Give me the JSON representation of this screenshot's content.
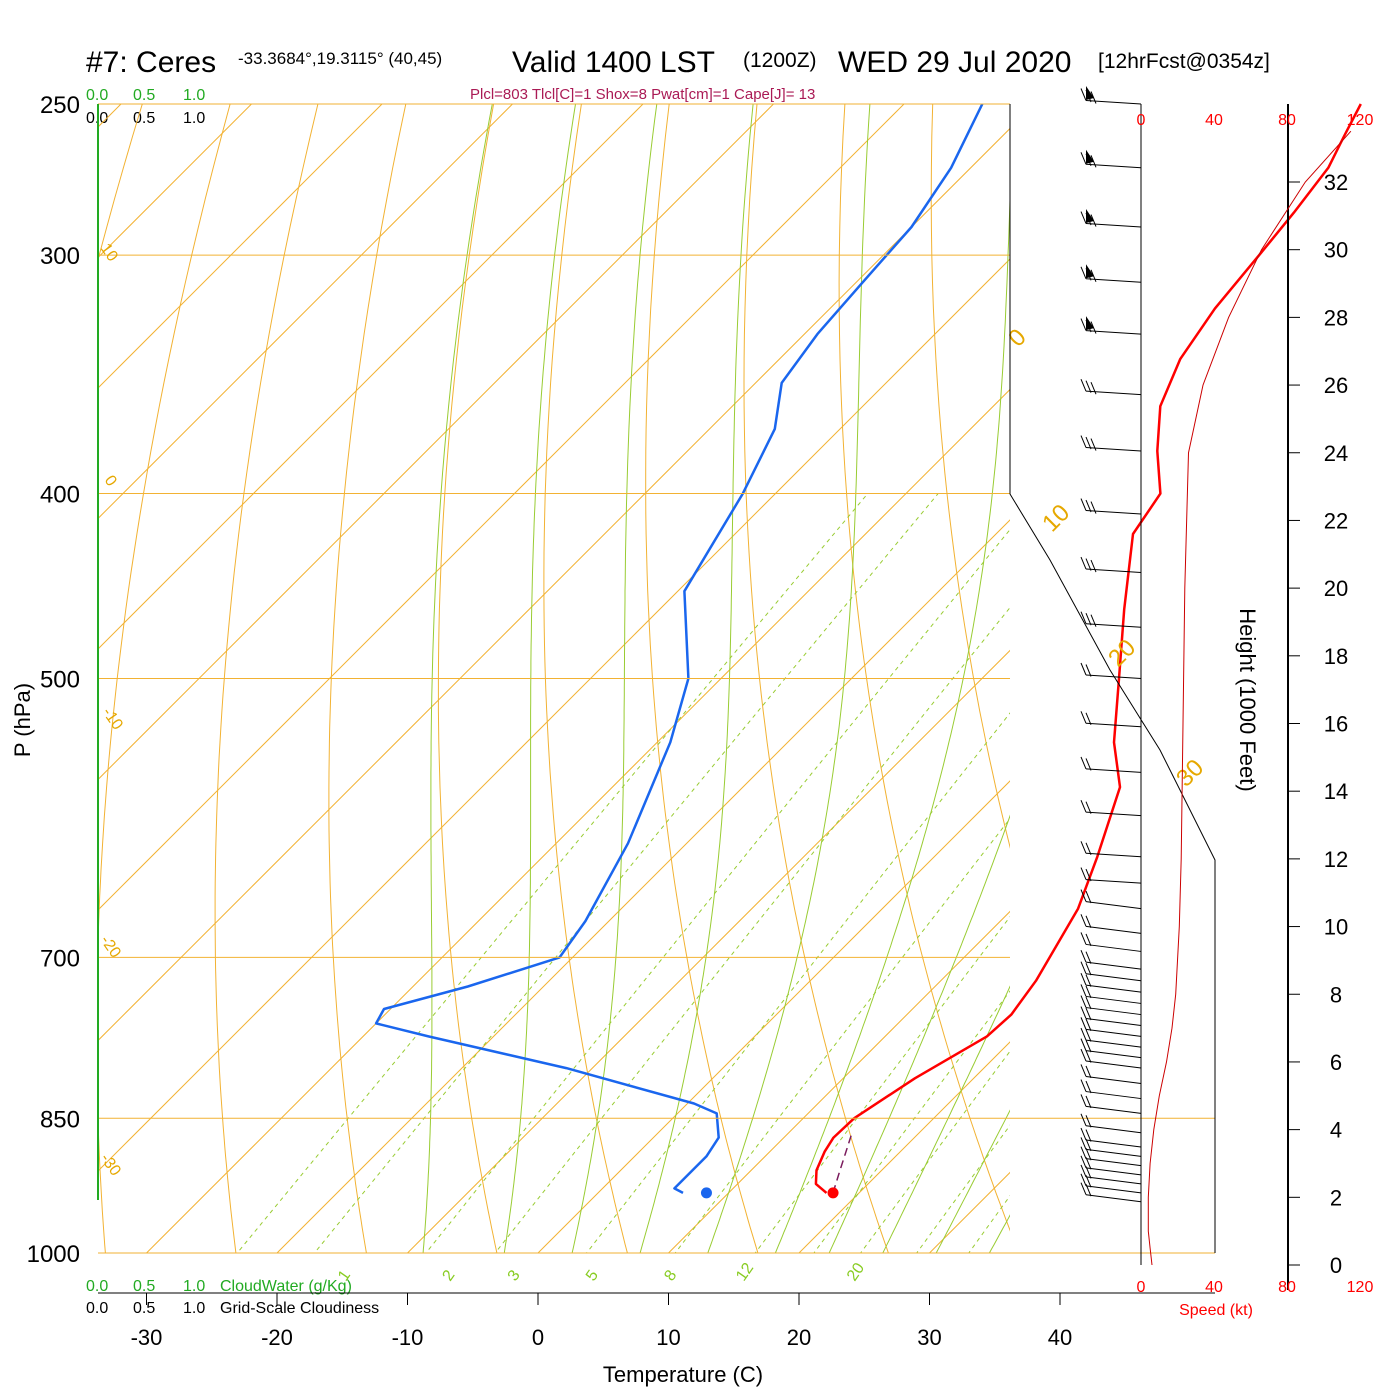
{
  "header": {
    "station": "#7: Ceres",
    "coords": "-33.3684°,19.3115° (40,45)",
    "valid": "Valid 1400 LST",
    "utc": "(1200Z)",
    "date": "WED 29 Jul 2020",
    "forecast": "[12hrFcst@0354z]",
    "indices": "Plcl=803 Tlcl[C]=1 Shox=8 Pwat[cm]=1 Cape[J]= 13"
  },
  "legend": {
    "cloud_scale": [
      "0.0",
      "0.5",
      "1.0"
    ],
    "cloud_water_label": "CloudWater (g/Kg)",
    "cloudiness_label": "Grid-Scale Cloudiness"
  },
  "colors": {
    "temperature": "#ff0000",
    "dewpoint": "#1a66ee",
    "isotherm": "#f2b233",
    "dry_adiabat": "#f2b233",
    "moist_adiabat": "#99cc33",
    "mixing_ratio": "#99cc33",
    "parcel": "#7a1a5c",
    "cloud_axis": "#22aa22",
    "wind_speed": "#cc0000"
  },
  "chart_data": {
    "type": "line",
    "title": "#7: Ceres  Valid 1400 LST (1200Z) WED 29 Jul 2020 [12hrFcst@0354z]",
    "xlabel": "Temperature (C)",
    "ylabel": "P (hPa)",
    "y2label": "Height (1000 Feet)",
    "speed_label": "Speed (kt)",
    "xlim": [
      -34,
      36
    ],
    "ylim_hPa": [
      1000,
      250
    ],
    "y_log_scale": true,
    "x_ticks": [
      -30,
      -20,
      -10,
      0,
      10,
      20,
      30,
      40
    ],
    "p_ticks": [
      250,
      300,
      400,
      500,
      700,
      850,
      1000
    ],
    "height_ticks_kft": [
      0,
      2,
      4,
      6,
      8,
      10,
      12,
      14,
      16,
      18,
      20,
      22,
      24,
      26,
      28,
      30,
      32
    ],
    "speed_ticks_kt": [
      0,
      40,
      80,
      120
    ],
    "isotherm_labels": [
      "10",
      "0",
      "-10",
      "-20",
      "-30",
      "0",
      "10",
      "20",
      "30"
    ],
    "mixing_ratio_labels": [
      "1",
      "2",
      "3",
      "5",
      "8",
      "12",
      "20"
    ],
    "series": [
      {
        "name": "Temperature",
        "points": [
          [
            17.5,
            930
          ],
          [
            16.0,
            920
          ],
          [
            15.0,
            905
          ],
          [
            14.2,
            885
          ],
          [
            13.8,
            870
          ],
          [
            13.9,
            850
          ],
          [
            15.5,
            810
          ],
          [
            17.8,
            770
          ],
          [
            18.0,
            750
          ],
          [
            17.3,
            720
          ],
          [
            15.0,
            660
          ],
          [
            12.5,
            620
          ],
          [
            8.9,
            570
          ],
          [
            5.0,
            540
          ],
          [
            0.5,
            500
          ],
          [
            -4.4,
            460
          ],
          [
            -9.5,
            420
          ],
          [
            -10.5,
            400
          ],
          [
            -14.0,
            380
          ],
          [
            -17.2,
            360
          ],
          [
            -19.3,
            340
          ],
          [
            -20.5,
            320
          ],
          [
            -21.2,
            300
          ],
          [
            -21.8,
            285
          ],
          [
            -22.6,
            270
          ],
          [
            -23.8,
            260
          ],
          [
            -25.0,
            250
          ]
        ]
      },
      {
        "name": "Dewpoint",
        "points": [
          [
            6.5,
            930
          ],
          [
            5.5,
            925
          ],
          [
            5.5,
            890
          ],
          [
            5.0,
            870
          ],
          [
            3.0,
            845
          ],
          [
            0.5,
            835
          ],
          [
            -12.0,
            800
          ],
          [
            -25.0,
            770
          ],
          [
            -30.0,
            758
          ],
          [
            -30.5,
            745
          ],
          [
            -25.8,
            725
          ],
          [
            -21.0,
            700
          ],
          [
            -21.8,
            670
          ],
          [
            -24.5,
            610
          ],
          [
            -29.0,
            540
          ],
          [
            -32.5,
            500
          ],
          [
            -39.5,
            450
          ],
          [
            -42.5,
            400
          ],
          [
            -45.0,
            370
          ],
          [
            -48.0,
            350
          ],
          [
            -49.0,
            330
          ],
          [
            -49.5,
            310
          ],
          [
            -50.0,
            290
          ],
          [
            -51.5,
            270
          ],
          [
            -54.0,
            250
          ]
        ]
      },
      {
        "name": "Parcel",
        "points": [
          [
            18.0,
            930
          ],
          [
            16.8,
            905
          ],
          [
            15.6,
            880
          ],
          [
            15.0,
            868
          ]
        ]
      },
      {
        "name": "Surface",
        "points": [
          [
            18.0,
            930
          ],
          [
            8.3,
            930
          ]
        ]
      }
    ],
    "wind_speed_profile_kt": [
      [
        0,
        6
      ],
      [
        0.5,
        5
      ],
      [
        1.0,
        4
      ],
      [
        2.0,
        4
      ],
      [
        3.0,
        5
      ],
      [
        4.0,
        7
      ],
      [
        5.0,
        10
      ],
      [
        6.0,
        14
      ],
      [
        7.0,
        17
      ],
      [
        8.0,
        19
      ],
      [
        10.0,
        21
      ],
      [
        12.0,
        22
      ],
      [
        16.0,
        23
      ],
      [
        20.0,
        24
      ],
      [
        24.0,
        26
      ],
      [
        26.0,
        34
      ],
      [
        28.0,
        48
      ],
      [
        30.0,
        66
      ],
      [
        32.0,
        90
      ],
      [
        33.5,
        115
      ]
    ],
    "wind_barb_pressures_hPa": [
      250,
      270,
      290,
      310,
      330,
      355,
      380,
      410,
      440,
      470,
      500,
      530,
      560,
      590,
      620,
      640,
      660,
      680,
      695,
      710,
      720,
      730,
      740,
      750,
      760,
      770,
      780,
      790,
      800,
      815,
      830,
      845,
      865,
      880,
      890,
      900,
      910,
      920,
      930,
      940
    ]
  }
}
